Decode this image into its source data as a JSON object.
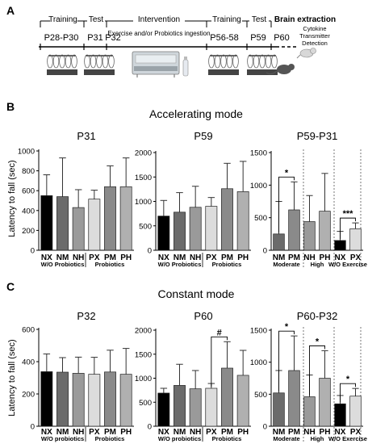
{
  "panel_a": {
    "letter": "A",
    "phases": [
      {
        "label": "Training"
      },
      {
        "label": "Test"
      },
      {
        "label": "Intervention"
      },
      {
        "label": "Training"
      },
      {
        "label": "Test"
      },
      {
        "label": "Brain extraction"
      }
    ],
    "intervention_note": "Exercise and/or Probiotics ingestion",
    "timepoints": [
      "P28-P30",
      "P31",
      "P32",
      "P56-58",
      "P59",
      "P60"
    ],
    "extraction_details": [
      "Cytokine",
      "Transmitter",
      "Detection"
    ]
  },
  "panel_b": {
    "letter": "B",
    "title": "Accelerating mode"
  },
  "panel_c": {
    "letter": "C",
    "title": "Constant mode"
  },
  "y_axis_label": "Latency to fall (sec)",
  "colors": {
    "NX": "#000000",
    "NM": "#6b6b6b",
    "NH": "#9a9a9a",
    "PX": "#dcdcdc",
    "PM": "#8a8a8a",
    "PH": "#b0b0b0"
  },
  "chart_data": [
    {
      "id": "b1",
      "type": "bar",
      "title": "P31",
      "categories": [
        "NX",
        "NM",
        "NH",
        "PX",
        "PM",
        "PH"
      ],
      "values": [
        550,
        540,
        430,
        515,
        640,
        640
      ],
      "errors": [
        210,
        390,
        180,
        90,
        210,
        290
      ],
      "ylim": [
        0,
        1000
      ],
      "yticks": [
        0,
        200,
        400,
        600,
        800,
        1000
      ],
      "group_labels": [
        "W/O Probiotics",
        "Probiotics"
      ]
    },
    {
      "id": "b2",
      "type": "bar",
      "title": "P59",
      "categories": [
        "NX",
        "NM",
        "NH",
        "PX",
        "PM",
        "PH"
      ],
      "values": [
        700,
        780,
        880,
        900,
        1260,
        1200
      ],
      "errors": [
        320,
        400,
        430,
        180,
        520,
        620
      ],
      "ylim": [
        0,
        2000
      ],
      "yticks": [
        0,
        500,
        1000,
        1500,
        2000
      ],
      "group_labels": [
        "W/O Probiotics",
        "Probiotics"
      ]
    },
    {
      "id": "b3",
      "type": "bar",
      "title": "P59-P31",
      "categories": [
        "NM",
        "PM",
        "NH",
        "PH",
        "NX",
        "PX"
      ],
      "values": [
        250,
        620,
        440,
        600,
        150,
        330
      ],
      "errors": [
        500,
        430,
        400,
        580,
        140,
        90
      ],
      "ylim": [
        0,
        1500
      ],
      "yticks": [
        0,
        500,
        1000,
        1500
      ],
      "group_labels": [
        "Moderate",
        "High",
        "W/O Exercise"
      ],
      "significance": [
        {
          "pair": [
            0,
            1
          ],
          "label": "*"
        },
        {
          "pair": [
            4,
            5
          ],
          "label": "***"
        }
      ]
    },
    {
      "id": "c1",
      "type": "bar",
      "title": "P32",
      "categories": [
        "NX",
        "NM",
        "NH",
        "PX",
        "PM",
        "PH"
      ],
      "values": [
        338,
        335,
        328,
        322,
        336,
        322
      ],
      "errors": [
        110,
        90,
        100,
        105,
        135,
        160
      ],
      "ylim": [
        0,
        600
      ],
      "yticks": [
        0,
        200,
        400,
        600
      ],
      "group_labels": [
        "W/O probiotics",
        "Probiotics"
      ]
    },
    {
      "id": "c2",
      "type": "bar",
      "title": "P60",
      "categories": [
        "NX",
        "NM",
        "NH",
        "PX",
        "PM",
        "PH"
      ],
      "values": [
        690,
        850,
        780,
        790,
        1210,
        1060
      ],
      "errors": [
        100,
        440,
        380,
        100,
        550,
        520
      ],
      "ylim": [
        0,
        2000
      ],
      "yticks": [
        0,
        500,
        1000,
        1500,
        2000
      ],
      "group_labels": [
        "W/O probiotics",
        "Probiotics"
      ],
      "significance": [
        {
          "pair": [
            3,
            4
          ],
          "label": "#"
        }
      ]
    },
    {
      "id": "c3",
      "type": "bar",
      "title": "P60-P32",
      "categories": [
        "NM",
        "PM",
        "NH",
        "PH",
        "NX",
        "PX"
      ],
      "values": [
        520,
        870,
        460,
        750,
        350,
        470
      ],
      "errors": [
        350,
        540,
        340,
        430,
        130,
        120
      ],
      "ylim": [
        0,
        1500
      ],
      "yticks": [
        0,
        500,
        1000,
        1500
      ],
      "group_labels": [
        "Moderate",
        "High",
        "W/O Exercise"
      ],
      "significance": [
        {
          "pair": [
            0,
            1
          ],
          "label": "*"
        },
        {
          "pair": [
            2,
            3
          ],
          "label": "*"
        },
        {
          "pair": [
            4,
            5
          ],
          "label": "*"
        }
      ]
    }
  ]
}
